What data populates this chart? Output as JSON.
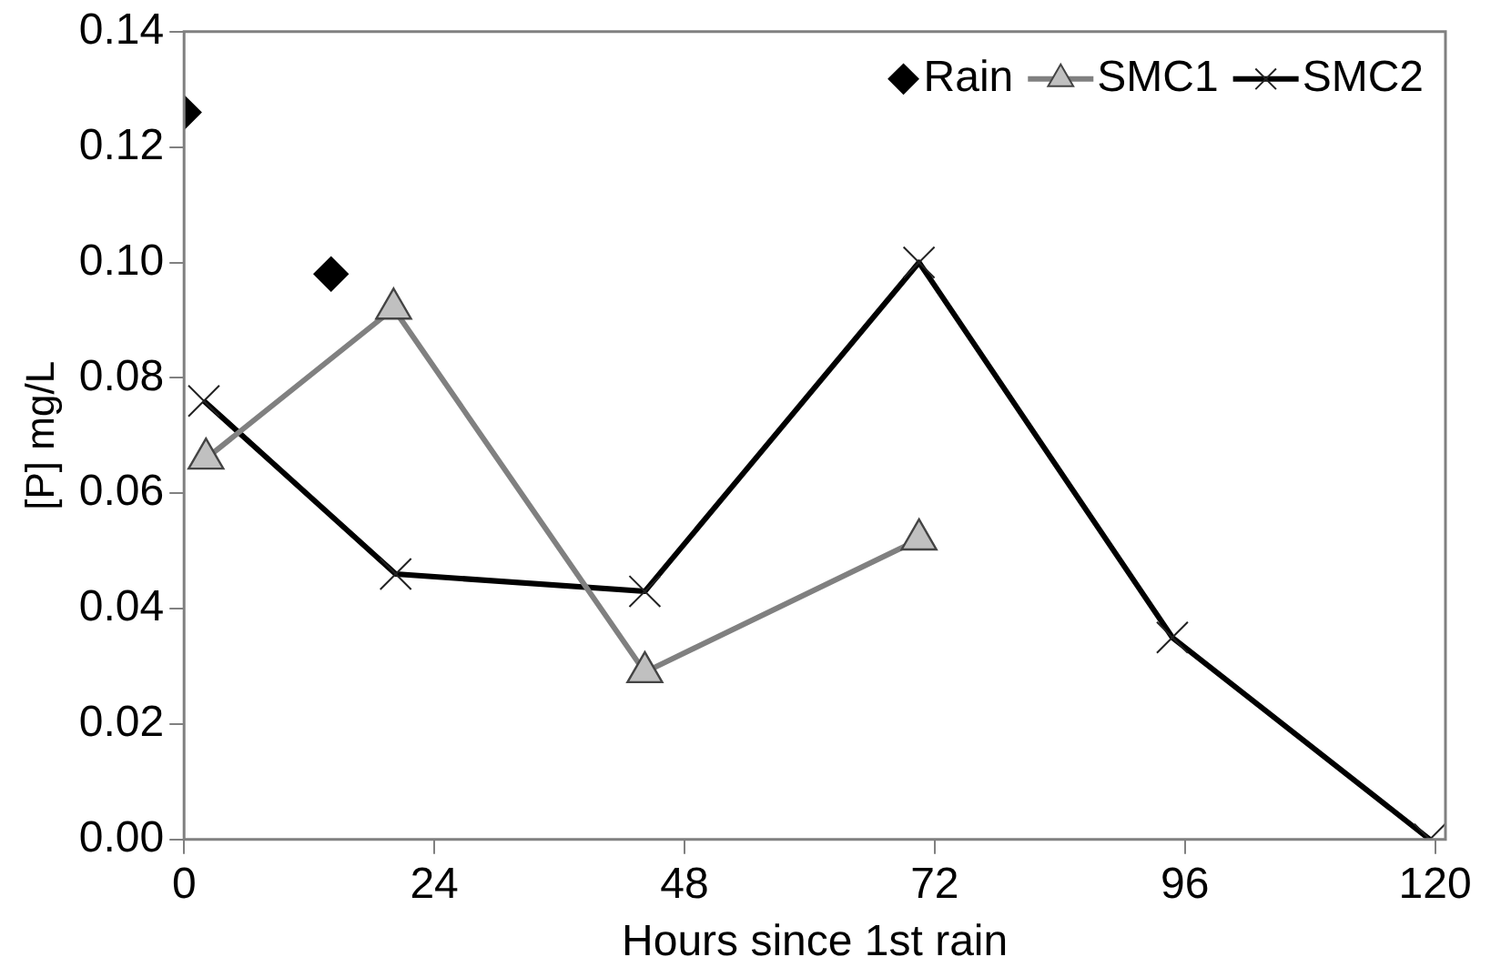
{
  "chart_data": {
    "type": "line",
    "xlabel": "Hours since 1st rain",
    "ylabel": "[P] mg/L",
    "xlim": [
      0,
      121
    ],
    "xticks": [
      0,
      24,
      48,
      72,
      96,
      120
    ],
    "ylim": [
      0,
      0.14
    ],
    "yticks": [
      {
        "value": 0,
        "label": "0.00"
      },
      {
        "value": 0.02,
        "label": "0.02"
      },
      {
        "value": 0.04,
        "label": "0.04"
      },
      {
        "value": 0.06,
        "label": "0.06"
      },
      {
        "value": 0.08,
        "label": "0.08"
      },
      {
        "value": 0.1,
        "label": "0.10"
      },
      {
        "value": 0.12,
        "label": "0.12"
      },
      {
        "value": 0.14,
        "label": "0.14"
      }
    ],
    "grid": false,
    "legend": "top right",
    "line_style": "solid",
    "series": [
      {
        "name": "Rain",
        "type": "scatter",
        "marker": "diamond",
        "color": "#000000",
        "x": [
          0,
          14.1
        ],
        "values": [
          0.126,
          0.098
        ]
      },
      {
        "name": "SMC1",
        "type": "line",
        "marker": "triangle",
        "color": "#808080",
        "x": [
          2.1,
          20.1,
          44.2,
          70.5
        ],
        "values": [
          0.066,
          0.092,
          0.029,
          0.052
        ]
      },
      {
        "name": "SMC2",
        "type": "line",
        "marker": "cross",
        "color": "#000000",
        "x": [
          1.9,
          20.3,
          44.2,
          70.5,
          94.8,
          119.5
        ],
        "values": [
          0.076,
          0.046,
          0.043,
          0.1,
          0.035,
          0
        ]
      }
    ]
  }
}
